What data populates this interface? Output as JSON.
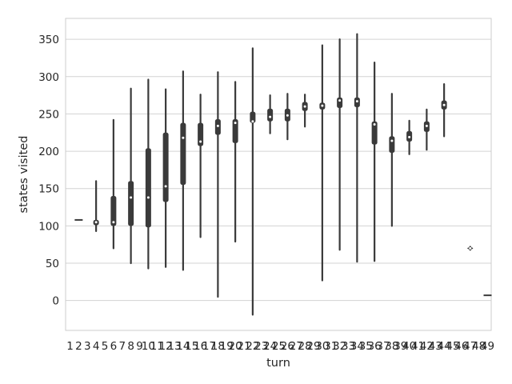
{
  "chart_data": {
    "type": "violin",
    "title": "",
    "xlabel": "turn",
    "ylabel": "states visited",
    "ylim": [
      -40,
      378
    ],
    "yticks": [
      0,
      50,
      100,
      150,
      200,
      250,
      300,
      350
    ],
    "ytick_labels": [
      "0",
      "50",
      "100",
      "150",
      "200",
      "250",
      "300",
      "350"
    ],
    "grid": "horizontal",
    "legend": "none",
    "colors": {
      "violin": "#3a3a3a",
      "median": "#ffffff",
      "grid": "#d3d3d3",
      "frame": "#cccccc",
      "text": "#262626"
    },
    "categories": [
      "1",
      "2",
      "3",
      "4",
      "5",
      "6",
      "7",
      "8",
      "9",
      "10",
      "11",
      "12",
      "13",
      "14",
      "15",
      "16",
      "17",
      "18",
      "19",
      "20",
      "21",
      "22",
      "23",
      "24",
      "25",
      "26",
      "27",
      "28",
      "29",
      "30",
      "31",
      "32",
      "33",
      "34",
      "35",
      "36",
      "37",
      "38",
      "39",
      "40",
      "41",
      "42",
      "43",
      "44",
      "45",
      "46",
      "47",
      "48",
      "49"
    ],
    "violins": [
      {
        "turn": "2",
        "min": 107,
        "q1": 107,
        "median": 108,
        "q3": 109,
        "max": 109
      },
      {
        "turn": "4",
        "min": 93,
        "q1": 101,
        "median": 105,
        "q3": 108,
        "max": 160
      },
      {
        "turn": "6",
        "min": 70,
        "q1": 100,
        "median": 105,
        "q3": 140,
        "max": 242
      },
      {
        "turn": "8",
        "min": 50,
        "q1": 100,
        "median": 138,
        "q3": 160,
        "max": 284
      },
      {
        "turn": "10",
        "min": 43,
        "q1": 98,
        "median": 138,
        "q3": 204,
        "max": 296
      },
      {
        "turn": "12",
        "min": 45,
        "q1": 132,
        "median": 153,
        "q3": 225,
        "max": 283
      },
      {
        "turn": "14",
        "min": 41,
        "q1": 155,
        "median": 218,
        "q3": 238,
        "max": 307
      },
      {
        "turn": "16",
        "min": 85,
        "q1": 207,
        "median": 213,
        "q3": 238,
        "max": 276
      },
      {
        "turn": "18",
        "min": 5,
        "q1": 222,
        "median": 234,
        "q3": 243,
        "max": 306
      },
      {
        "turn": "20",
        "min": 79,
        "q1": 211,
        "median": 238,
        "q3": 243,
        "max": 293
      },
      {
        "turn": "22",
        "min": -19,
        "q1": 238,
        "median": 240,
        "q3": 253,
        "max": 338
      },
      {
        "turn": "24",
        "min": 224,
        "q1": 240,
        "median": 246,
        "q3": 257,
        "max": 275
      },
      {
        "turn": "26",
        "min": 216,
        "q1": 240,
        "median": 248,
        "q3": 257,
        "max": 277
      },
      {
        "turn": "28",
        "min": 233,
        "q1": 254,
        "median": 260,
        "q3": 266,
        "max": 276
      },
      {
        "turn": "30",
        "min": 27,
        "q1": 256,
        "median": 261,
        "q3": 265,
        "max": 342
      },
      {
        "turn": "32",
        "min": 68,
        "q1": 258,
        "median": 268,
        "q3": 272,
        "max": 350
      },
      {
        "turn": "34",
        "min": 52,
        "q1": 259,
        "median": 267,
        "q3": 272,
        "max": 357
      },
      {
        "turn": "36",
        "min": 53,
        "q1": 209,
        "median": 236,
        "q3": 240,
        "max": 319
      },
      {
        "turn": "38",
        "min": 100,
        "q1": 198,
        "median": 214,
        "q3": 220,
        "max": 277
      },
      {
        "turn": "40",
        "min": 196,
        "q1": 213,
        "median": 219,
        "q3": 227,
        "max": 241
      },
      {
        "turn": "42",
        "min": 202,
        "q1": 226,
        "median": 234,
        "q3": 240,
        "max": 256
      },
      {
        "turn": "44",
        "min": 220,
        "q1": 256,
        "median": 262,
        "q3": 268,
        "max": 290
      },
      {
        "turn": "47",
        "min": 68,
        "q1": 69,
        "median": 70,
        "q3": 71,
        "max": 72
      },
      {
        "turn": "49",
        "min": 7,
        "q1": 7,
        "median": 7,
        "q3": 7,
        "max": 7
      }
    ]
  }
}
